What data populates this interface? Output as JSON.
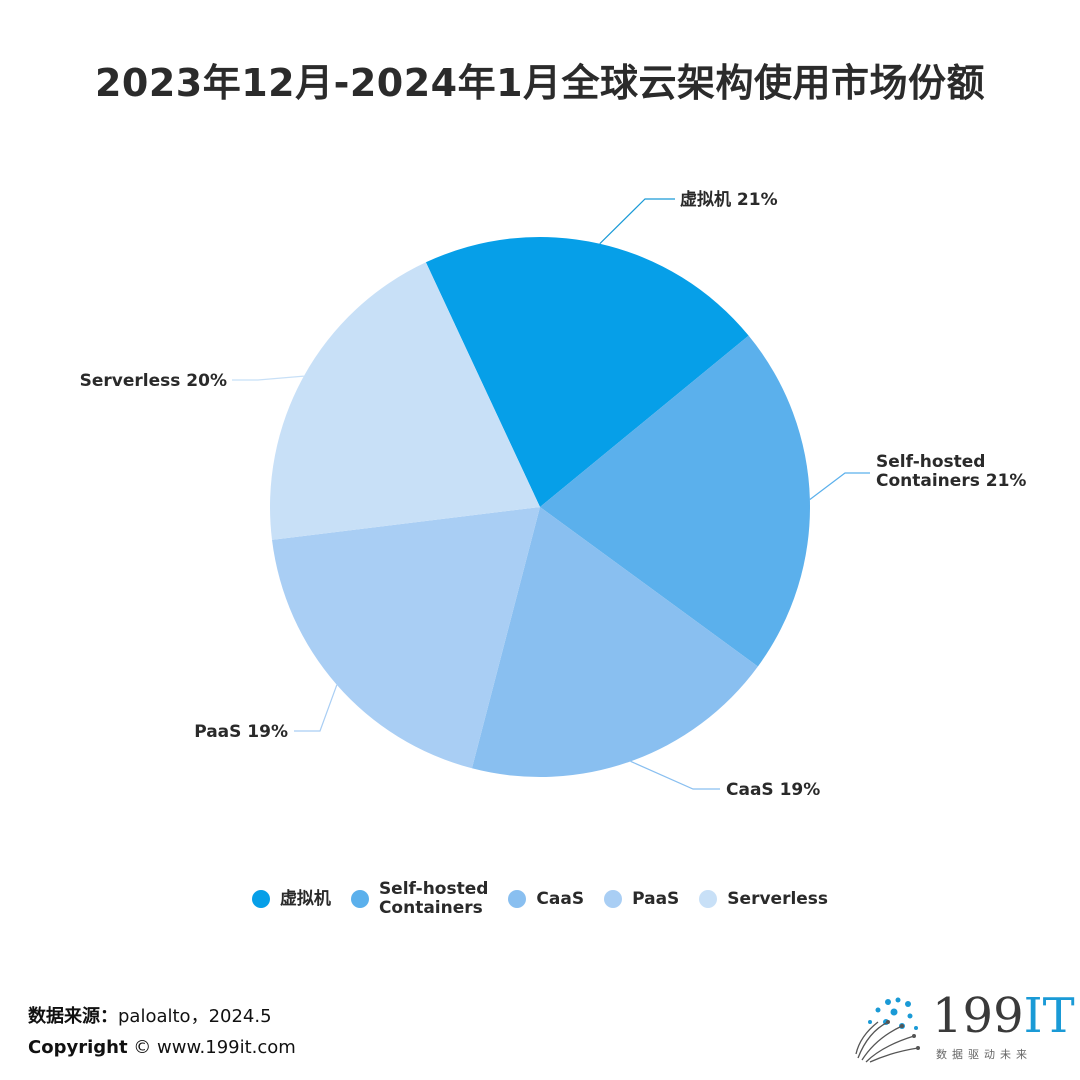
{
  "title": "2023年12月-2024年1月全球云架构使用市场份额",
  "chart_data": {
    "type": "pie",
    "title": "2023年12月-2024年1月全球云架构使用市场份额",
    "slices": [
      {
        "label": "虚拟机",
        "value": 21,
        "value_label": "21%",
        "color": "#069FE8"
      },
      {
        "label": "Self-hosted Containers",
        "value": 21,
        "value_label": "21%",
        "color": "#5BB0EC"
      },
      {
        "label": "CaaS",
        "value": 19,
        "value_label": "19%",
        "color": "#89BFF0"
      },
      {
        "label": "PaaS",
        "value": 19,
        "value_label": "19%",
        "color": "#A9CEF4"
      },
      {
        "label": "Serverless",
        "value": 20,
        "value_label": "20%",
        "color": "#C8E0F7"
      }
    ],
    "start_direction": "12 o'clock, with first slice starting slightly left of top",
    "legend_position": "bottom",
    "legend": [
      {
        "text": "虚拟机",
        "color": "#069FE8"
      },
      {
        "text": "Self-hosted\nContainers",
        "color": "#5BB0EC"
      },
      {
        "text": "CaaS",
        "color": "#89BFF0"
      },
      {
        "text": "PaaS",
        "color": "#A9CEF4"
      },
      {
        "text": "Serverless",
        "color": "#C8E0F7"
      }
    ]
  },
  "footer": {
    "source_label": "数据来源：",
    "source_value": "paloalto，2024.5",
    "copyright_label": "Copyright",
    "copyright_value": "© www.199it.com"
  },
  "logo": {
    "main": "199",
    "accent": "IT",
    "sub": "数据驱动未来"
  }
}
